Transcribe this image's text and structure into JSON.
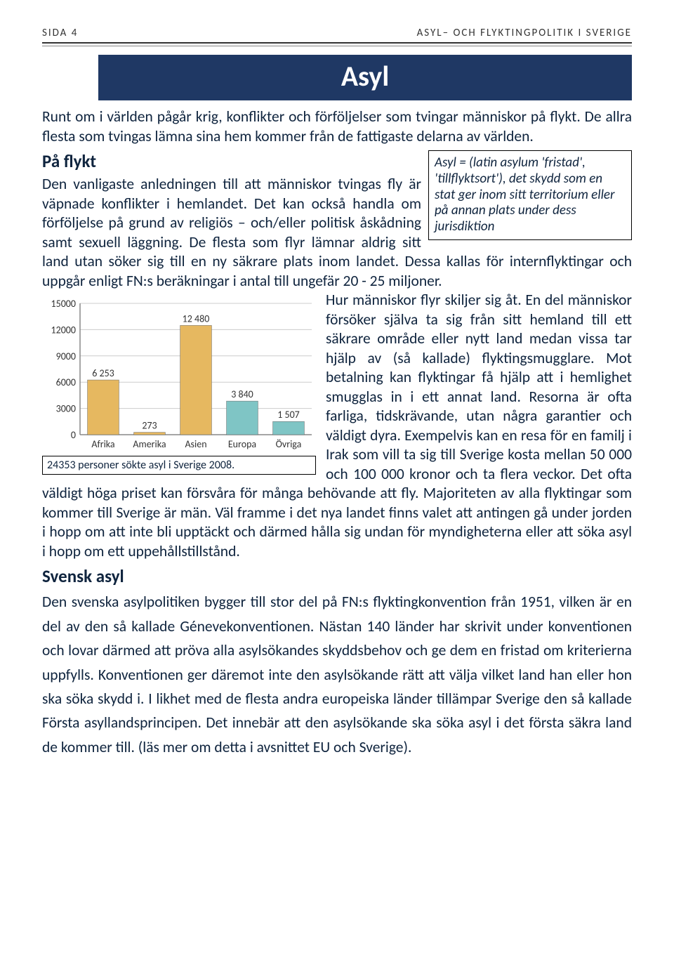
{
  "header": {
    "page_label": "SIDA 4",
    "doc_title": "ASYL– OCH FLYKTINGPOLITIK I SVERIGE"
  },
  "title_bar": "Asyl",
  "intro_paragraph": "Runt om i världen pågår krig, konflikter och förföljelser som tvingar människor på flykt. De allra flesta som tvingas lämna sina hem kommer från de fattigaste delarna av världen.",
  "definition_box": "Asyl = (latin asylum 'fristad', 'tillflyktsort'), det skydd som en stat ger inom sitt territorium eller på annan plats under dess jurisdiktion",
  "subhead1": "På flykt",
  "para_flykt": "Den vanligaste anledningen till att människor tvingas fly är väpnade konflikter i hemlandet. Det kan också handla om förföljelse på grund av religiös – och/eller politisk åskådning samt sexuell läggning. De flesta som flyr lämnar aldrig sitt land utan söker sig till en ny säkrare plats inom landet. Dessa kallas för internflyktingar och uppgår enligt FN:s beräkningar i antal till ungefär 20 - 25 miljoner.",
  "para_hur": "Hur människor flyr skiljer sig åt. En del människor försöker själva ta sig från sitt hemland till ett säkrare område eller nytt land medan vissa tar hjälp av (så kallade) flyktingsmugglare. Mot betalning kan flyktingar få hjälp att i hemlighet smugglas in i ett annat land. Resorna är ofta farliga, tidskrävande, utan några garantier och väldigt dyra. Exempelvis kan en resa för en familj i Irak som vill ta sig till Sverige kosta mellan 50 000 och 100 000 kronor och ta flera veckor. Det ofta väldigt höga priset kan försvåra för många behövande att fly. Majoriteten av alla flyktingar som kommer till Sverige är män. Väl framme i det nya landet finns valet att antingen gå under jorden i hopp om att inte bli upptäckt och därmed hålla sig undan för myndigheterna eller att söka asyl i hopp om ett uppehållstillstånd.",
  "subhead2": "Svensk asyl",
  "para_svensk": "Den svenska asylpolitiken bygger till stor del på FN:s flyktingkonvention från 1951, vilken är en del av den så kallade Génevekonventionen. Nästan 140 länder har skrivit under konventionen och lovar därmed att pröva alla asylsökandes skyddsbehov och ge dem en fristad om kriterierna uppfylls. Konventionen ger däremot inte den asylsökande rätt att välja vilket land han eller hon ska söka skydd i. I likhet med de flesta andra europeiska länder tillämpar Sverige den så kallade Första asyllandsprincipen. Det innebär att den asylsökande ska söka asyl i det första säkra land de kommer till. (läs mer om detta i avsnittet EU och Sverige).",
  "chart": {
    "type": "bar",
    "categories": [
      "Afrika",
      "Amerika",
      "Asien",
      "Europa",
      "Övriga"
    ],
    "values": [
      6253,
      273,
      12480,
      3840,
      1507
    ],
    "value_labels": [
      "6 253",
      "273",
      "12 480",
      "3 840",
      "1 507"
    ],
    "bar_colors": [
      "#e6b860",
      "#e6b860",
      "#e6b860",
      "#7fc5c5",
      "#7fc5c5"
    ],
    "ymax": 15000,
    "ytick_step": 3000,
    "y_ticks": [
      0,
      3000,
      6000,
      9000,
      12000,
      15000
    ],
    "axis_color": "#888888",
    "grid_color": "#cccccc",
    "label_fontsize": 14,
    "value_fontsize": 14,
    "bar_width_ratio": 0.68,
    "caption": "24353 personer sökte asyl i Sverige 2008."
  },
  "colors": {
    "title_bar_bg": "#1f3864",
    "title_bar_fg": "#ffffff",
    "body_text": "#0f243e",
    "page_bg": "#ffffff"
  }
}
